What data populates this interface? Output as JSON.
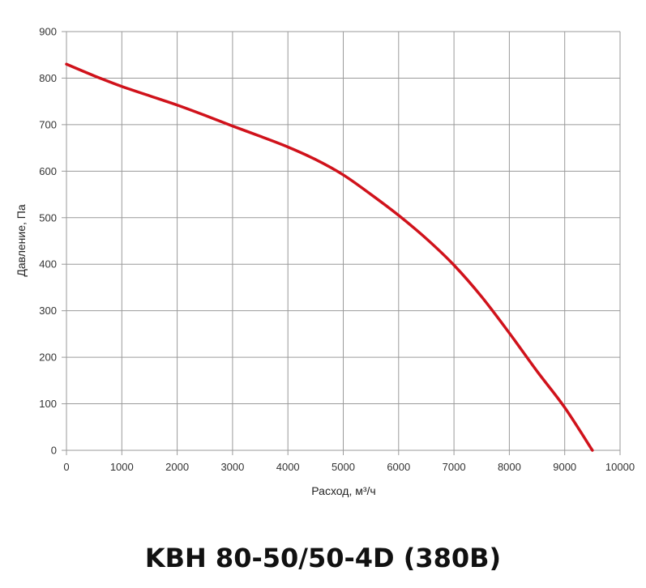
{
  "chart_data": {
    "type": "line",
    "title": "KBH 80-50/50-4D (380B)",
    "xlabel": "Расход, м³/ч",
    "ylabel": "Давление, Па",
    "xlim": [
      0,
      10000
    ],
    "ylim": [
      0,
      900
    ],
    "x_ticks": [
      0,
      1000,
      2000,
      3000,
      4000,
      5000,
      6000,
      7000,
      8000,
      9000,
      10000
    ],
    "y_ticks": [
      0,
      100,
      200,
      300,
      400,
      500,
      600,
      700,
      800,
      900
    ],
    "grid": true,
    "series": [
      {
        "color": "#d0121b",
        "x": [
          0,
          500,
          1000,
          1500,
          2000,
          2500,
          3000,
          3500,
          4000,
          4500,
          5000,
          5500,
          6000,
          6500,
          7000,
          7500,
          8000,
          8500,
          9000,
          9500
        ],
        "y": [
          830,
          805,
          782,
          762,
          742,
          720,
          697,
          675,
          652,
          625,
          592,
          550,
          505,
          455,
          398,
          330,
          252,
          170,
          92,
          0
        ]
      }
    ]
  }
}
